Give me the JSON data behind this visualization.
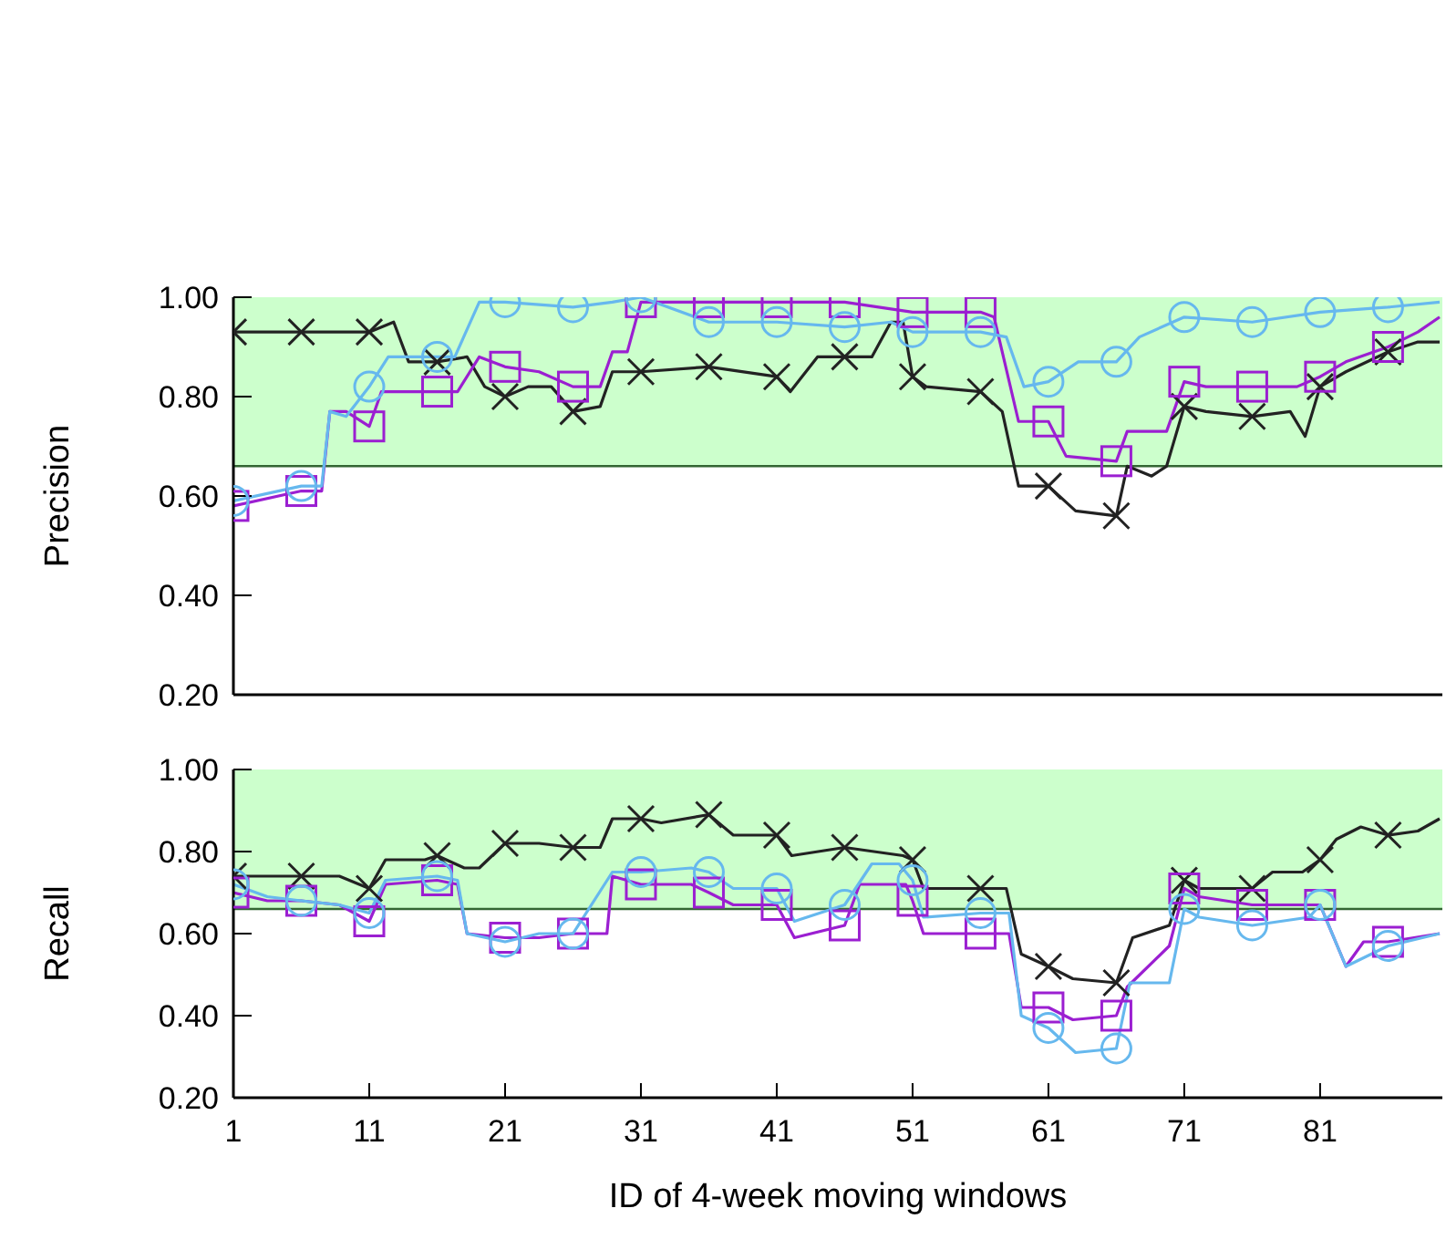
{
  "chart_data": [
    {
      "type": "line",
      "ylabel": "Precision",
      "xlim": [
        1,
        90
      ],
      "xticks": [
        1,
        11,
        21,
        31,
        41,
        51,
        61,
        71,
        81
      ],
      "ylim": [
        0.2,
        1.0
      ],
      "yticks": [
        {
          "value": 0.2,
          "label": "0.20"
        },
        {
          "value": 0.4,
          "label": "0.40"
        },
        {
          "value": 0.6,
          "label": "0.60"
        },
        {
          "value": 0.8,
          "label": "0.80"
        },
        {
          "value": 1.0,
          "label": "1.00"
        }
      ],
      "tick_labels": "y",
      "bands": [
        {
          "axis": "y",
          "from": 0.66,
          "to": 1.0,
          "color": "#ccffcc"
        }
      ],
      "ref_lines": [
        {
          "axis": "y",
          "value": 0.66,
          "color": "#336633"
        }
      ],
      "x": [
        1,
        6,
        11,
        16,
        21,
        26,
        31,
        36,
        41,
        46,
        51,
        56,
        61,
        66,
        71,
        76,
        81,
        86
      ],
      "series": [
        {
          "color": "#222222",
          "marker": "none",
          "x": [
            1,
            6,
            11,
            12.8,
            13.9,
            16,
            18.2,
            19.5,
            21,
            22.7,
            24.4,
            26,
            28,
            28.9,
            31,
            36,
            41,
            42,
            44,
            46,
            48,
            49.4,
            50.3,
            51,
            52,
            56,
            57.6,
            58.8,
            61,
            63,
            66,
            66.8,
            68.6,
            69.7,
            71,
            72.6,
            76,
            78.8,
            79.9,
            81,
            82.9,
            86,
            88.2,
            89.8
          ],
          "values": [
            0.93,
            0.93,
            0.93,
            0.95,
            0.87,
            0.87,
            0.88,
            0.82,
            0.8,
            0.82,
            0.82,
            0.77,
            0.78,
            0.85,
            0.85,
            0.86,
            0.84,
            0.81,
            0.88,
            0.88,
            0.88,
            0.95,
            0.95,
            0.84,
            0.82,
            0.81,
            0.77,
            0.62,
            0.62,
            0.57,
            0.56,
            0.66,
            0.64,
            0.66,
            0.78,
            0.77,
            0.76,
            0.77,
            0.72,
            0.82,
            0.85,
            0.89,
            0.91,
            0.91
          ]
        },
        {
          "color": "#9b1fd1",
          "marker": "none",
          "x": [
            1,
            6,
            7.5,
            8.1,
            9.3,
            11,
            11.9,
            16,
            17.5,
            19.1,
            21,
            23.5,
            26,
            28,
            28.9,
            30,
            31,
            36,
            41,
            46,
            51,
            56,
            57,
            58.8,
            61,
            62.3,
            66,
            66.8,
            69.7,
            71,
            72.6,
            76,
            79.3,
            81,
            82.9,
            86,
            88.2,
            89.8
          ],
          "values": [
            0.58,
            0.61,
            0.61,
            0.77,
            0.77,
            0.74,
            0.81,
            0.81,
            0.81,
            0.88,
            0.86,
            0.85,
            0.82,
            0.82,
            0.89,
            0.89,
            0.99,
            0.99,
            0.99,
            0.99,
            0.97,
            0.97,
            0.96,
            0.75,
            0.75,
            0.68,
            0.67,
            0.73,
            0.73,
            0.83,
            0.82,
            0.82,
            0.82,
            0.84,
            0.87,
            0.9,
            0.93,
            0.96
          ]
        },
        {
          "color": "#66b8ee",
          "marker": "none",
          "x": [
            1,
            6,
            7.5,
            8.1,
            9.3,
            11,
            12.4,
            16,
            17.3,
            19.1,
            21,
            26,
            28.9,
            31,
            36,
            41,
            46,
            49.4,
            51,
            56,
            57.9,
            59.2,
            61,
            63.2,
            66,
            67.7,
            71,
            76,
            81,
            86,
            89.8
          ],
          "values": [
            0.59,
            0.62,
            0.62,
            0.77,
            0.76,
            0.82,
            0.88,
            0.88,
            0.88,
            0.99,
            0.99,
            0.98,
            0.99,
            1.0,
            0.95,
            0.95,
            0.94,
            0.95,
            0.93,
            0.93,
            0.92,
            0.82,
            0.83,
            0.87,
            0.87,
            0.92,
            0.96,
            0.95,
            0.97,
            0.98,
            0.99
          ]
        },
        {
          "type": "scatter",
          "color": "#222222",
          "marker": "cross",
          "values": [
            0.93,
            0.93,
            0.93,
            0.87,
            0.8,
            0.77,
            0.85,
            0.86,
            0.84,
            0.88,
            0.84,
            0.81,
            0.62,
            0.56,
            0.78,
            0.76,
            0.82,
            0.89
          ]
        },
        {
          "type": "scatter",
          "color": "#9b1fd1",
          "marker": "square",
          "values": [
            0.58,
            0.61,
            0.74,
            0.81,
            0.86,
            0.82,
            0.99,
            0.99,
            0.99,
            0.99,
            0.97,
            0.97,
            0.75,
            0.67,
            0.83,
            0.82,
            0.84,
            0.9
          ]
        },
        {
          "type": "scatter",
          "color": "#66b8ee",
          "marker": "circle",
          "values": [
            0.59,
            0.62,
            0.82,
            0.88,
            0.99,
            0.98,
            1.0,
            0.95,
            0.95,
            0.94,
            0.93,
            0.93,
            0.83,
            0.87,
            0.96,
            0.95,
            0.97,
            0.98
          ]
        }
      ]
    },
    {
      "type": "line",
      "ylabel": "Recall",
      "xlabel": "ID of 4-week moving windows",
      "xlim": [
        1,
        90
      ],
      "xticks": [
        1,
        11,
        21,
        31,
        41,
        51,
        61,
        71,
        81
      ],
      "ylim": [
        0.2,
        1.0
      ],
      "yticks": [
        {
          "value": 0.2,
          "label": "0.20"
        },
        {
          "value": 0.4,
          "label": "0.40"
        },
        {
          "value": 0.6,
          "label": "0.60"
        },
        {
          "value": 0.8,
          "label": "0.80"
        },
        {
          "value": 1.0,
          "label": "1.00"
        }
      ],
      "bands": [
        {
          "axis": "y",
          "from": 0.66,
          "to": 1.0,
          "color": "#ccffcc"
        }
      ],
      "ref_lines": [
        {
          "axis": "y",
          "value": 0.66,
          "color": "#336633"
        }
      ],
      "x": [
        1,
        6,
        11,
        16,
        21,
        26,
        31,
        36,
        41,
        46,
        51,
        56,
        61,
        66,
        71,
        76,
        81,
        86
      ],
      "series": [
        {
          "color": "#222222",
          "marker": "none",
          "x": [
            1,
            3.5,
            6,
            8.8,
            11,
            12.2,
            15.1,
            16,
            18,
            19.1,
            21,
            23.5,
            26,
            28,
            28.9,
            31,
            32.5,
            36,
            37.8,
            41,
            42.1,
            46,
            50.3,
            51,
            51.8,
            56,
            57.9,
            59,
            61,
            62.8,
            66,
            67.2,
            69.9,
            71,
            72.1,
            76,
            77.5,
            79.7,
            81,
            82.2,
            84,
            86,
            88.2,
            89.8
          ],
          "values": [
            0.74,
            0.74,
            0.74,
            0.74,
            0.71,
            0.78,
            0.78,
            0.79,
            0.76,
            0.76,
            0.82,
            0.82,
            0.81,
            0.81,
            0.88,
            0.88,
            0.87,
            0.89,
            0.84,
            0.84,
            0.79,
            0.81,
            0.79,
            0.78,
            0.71,
            0.71,
            0.71,
            0.55,
            0.52,
            0.49,
            0.48,
            0.59,
            0.62,
            0.73,
            0.71,
            0.71,
            0.75,
            0.75,
            0.78,
            0.83,
            0.86,
            0.84,
            0.85,
            0.88
          ]
        },
        {
          "color": "#9b1fd1",
          "marker": "none",
          "x": [
            1,
            3.5,
            6,
            8.8,
            11,
            12.2,
            16,
            17.5,
            18.2,
            21,
            23.5,
            26,
            28.5,
            28.9,
            31,
            34.7,
            36,
            37.8,
            41,
            42.3,
            46,
            47.1,
            50.5,
            51,
            51.8,
            56,
            58.1,
            59,
            61,
            62.8,
            66,
            66.8,
            69.9,
            71,
            72.1,
            76,
            80.2,
            81,
            82.9,
            84.2,
            86,
            89.8
          ],
          "values": [
            0.7,
            0.68,
            0.68,
            0.67,
            0.63,
            0.72,
            0.73,
            0.72,
            0.6,
            0.59,
            0.59,
            0.6,
            0.6,
            0.74,
            0.72,
            0.72,
            0.7,
            0.67,
            0.67,
            0.59,
            0.62,
            0.72,
            0.72,
            0.68,
            0.6,
            0.6,
            0.6,
            0.42,
            0.42,
            0.39,
            0.4,
            0.47,
            0.57,
            0.71,
            0.69,
            0.67,
            0.67,
            0.67,
            0.52,
            0.58,
            0.58,
            0.6
          ]
        },
        {
          "color": "#66b8ee",
          "marker": "none",
          "x": [
            1,
            3.5,
            6,
            8.8,
            11,
            12.2,
            16,
            17.5,
            18.2,
            21,
            23.5,
            26,
            28.9,
            31,
            34.7,
            36,
            37.8,
            41,
            42.3,
            46,
            48,
            50,
            51,
            51.8,
            56,
            58.1,
            59,
            61,
            63,
            66,
            67,
            69.9,
            71,
            72.1,
            76,
            80.2,
            81,
            82.9,
            86,
            89.8
          ],
          "values": [
            0.72,
            0.69,
            0.68,
            0.67,
            0.65,
            0.73,
            0.74,
            0.73,
            0.6,
            0.58,
            0.6,
            0.6,
            0.75,
            0.75,
            0.76,
            0.75,
            0.71,
            0.71,
            0.63,
            0.67,
            0.77,
            0.77,
            0.73,
            0.64,
            0.65,
            0.65,
            0.4,
            0.37,
            0.31,
            0.32,
            0.48,
            0.48,
            0.66,
            0.64,
            0.62,
            0.64,
            0.67,
            0.52,
            0.57,
            0.6
          ]
        },
        {
          "type": "scatter",
          "color": "#222222",
          "marker": "cross",
          "values": [
            0.74,
            0.74,
            0.71,
            0.79,
            0.82,
            0.81,
            0.88,
            0.89,
            0.84,
            0.81,
            0.78,
            0.71,
            0.52,
            0.48,
            0.73,
            0.71,
            0.78,
            0.84
          ]
        },
        {
          "type": "scatter",
          "color": "#9b1fd1",
          "marker": "square",
          "values": [
            0.7,
            0.68,
            0.63,
            0.73,
            0.59,
            0.6,
            0.72,
            0.7,
            0.67,
            0.62,
            0.68,
            0.6,
            0.42,
            0.4,
            0.71,
            0.67,
            0.67,
            0.58
          ]
        },
        {
          "type": "scatter",
          "color": "#66b8ee",
          "marker": "circle",
          "values": [
            0.72,
            0.68,
            0.65,
            0.74,
            0.58,
            0.6,
            0.75,
            0.75,
            0.71,
            0.67,
            0.73,
            0.65,
            0.37,
            0.32,
            0.66,
            0.62,
            0.67,
            0.57
          ]
        }
      ]
    }
  ]
}
